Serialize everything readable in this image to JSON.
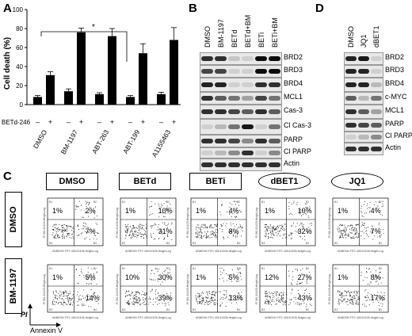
{
  "panels": {
    "a": "A",
    "b": "B",
    "c": "C",
    "d": "D"
  },
  "chart_data": {
    "type": "bar",
    "ylabel": "Cell death (%)",
    "ylim": [
      0,
      100
    ],
    "yticks": [
      "0",
      "20",
      "40",
      "60",
      "80",
      "100"
    ],
    "groups": [
      "DMSO",
      "BM-1197",
      "ABT-263",
      "ABT-199",
      "A1155463"
    ],
    "betd_row_label": "BETd-246",
    "signs": [
      "–",
      "+"
    ],
    "values": [
      8,
      31,
      14,
      76,
      11,
      72,
      8,
      54,
      11,
      68
    ],
    "errors": [
      1.5,
      3.5,
      2.5,
      4.5,
      1.5,
      8,
      1.5,
      10,
      2,
      13
    ],
    "significance": "*"
  },
  "panel_b": {
    "lanes": [
      "DMSO",
      "BM-1197",
      "BETd",
      "BETd+BM",
      "BETi",
      "BETi+BM"
    ],
    "bands": [
      "BRD2",
      "BRD3",
      "BRD4",
      "MCL1",
      "Cas-3",
      "Cl Cas-3",
      "PARP",
      "Cl PARP",
      "Actin"
    ]
  },
  "panel_d": {
    "lanes": [
      "DMSO",
      "JQ1",
      "dBET1"
    ],
    "bands": [
      "BRD2",
      "BRD3",
      "BRD4",
      "c-MYC",
      "MCL1",
      "PARP",
      "Cl PARP",
      "Actin"
    ]
  },
  "panel_c": {
    "cols": [
      "DMSO",
      "BETd",
      "BETi",
      "dBET1",
      "JQ1"
    ],
    "rows": [
      "DMSO",
      "BM-1197"
    ],
    "y_axis": "PI",
    "x_axis": "Annexin V",
    "plot_xlabel": "ANNEXIN FITC 405-513/26-Height-Log",
    "plot_ylabel": "PI 561-614/20-Height-Log",
    "quadrants": [
      "B1",
      "B2",
      "B3",
      "B4"
    ],
    "values": [
      [
        [
          "1%",
          "2%",
          "7%"
        ],
        [
          "1%",
          "10%",
          "31%"
        ],
        [
          "1%",
          "4%",
          "8%"
        ],
        [
          "1%",
          "10%",
          "32%"
        ],
        [
          "1%",
          "4%",
          "7%"
        ]
      ],
      [
        [
          "1%",
          "5%",
          "14%"
        ],
        [
          "10%",
          "30%",
          "39%"
        ],
        [
          "1%",
          "5%",
          "13%"
        ],
        [
          "12%",
          "27%",
          "43%"
        ],
        [
          "1%",
          "8%",
          "17%"
        ]
      ]
    ]
  }
}
